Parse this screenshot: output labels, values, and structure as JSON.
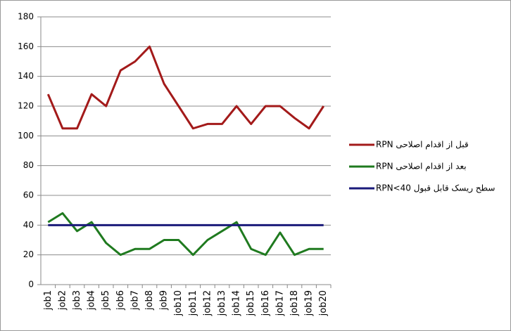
{
  "chart_data": {
    "type": "line",
    "categories": [
      "job1",
      "job2",
      "job3",
      "job4",
      "job5",
      "job6",
      "job7",
      "job8",
      "job9",
      "job10",
      "job11",
      "job12",
      "job13",
      "job14",
      "job15",
      "job16",
      "job17",
      "job18",
      "job19",
      "job20"
    ],
    "series": [
      {
        "name": "قبل از اقدام اصلاحی RPN",
        "color": "#a31a1a",
        "values": [
          128,
          105,
          105,
          128,
          120,
          144,
          150,
          160,
          135,
          120,
          105,
          108,
          108,
          120,
          108,
          120,
          120,
          112,
          105,
          120
        ]
      },
      {
        "name": "بعد از اقدام اصلاحی  RPN",
        "color": "#1f7a1f",
        "values": [
          42,
          48,
          36,
          42,
          28,
          20,
          24,
          24,
          30,
          30,
          20,
          30,
          36,
          42,
          24,
          20,
          35,
          20,
          24,
          24
        ]
      },
      {
        "name": "سطح ریسک قابل قبول RPN<40",
        "color": "#1a1a7a",
        "values": [
          40,
          40,
          40,
          40,
          40,
          40,
          40,
          40,
          40,
          40,
          40,
          40,
          40,
          40,
          40,
          40,
          40,
          40,
          40,
          40
        ]
      }
    ],
    "ylim": [
      0,
      180
    ],
    "yticks": [
      0,
      20,
      40,
      60,
      80,
      100,
      120,
      140,
      160,
      180
    ],
    "grid": true,
    "legend": "right"
  }
}
